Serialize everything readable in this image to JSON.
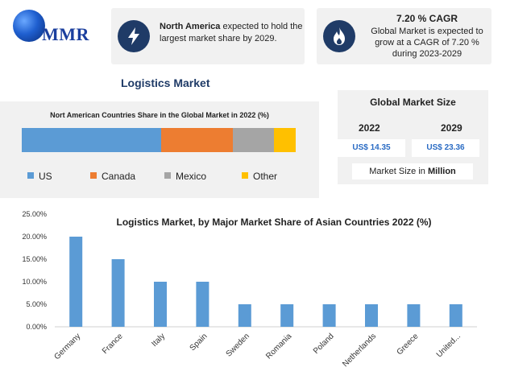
{
  "logo": {
    "text": "MMR"
  },
  "info_left": {
    "bold": "North America",
    "rest": " expected to hold the largest market share by 2029.",
    "icon": "lightning-icon"
  },
  "info_right": {
    "title": "7.20 % CAGR",
    "text": "Global Market is expected to grow at a CAGR of 7.20 % during 2023-2029",
    "icon": "flame-icon"
  },
  "page_title": "Logistics Market",
  "market_size": {
    "title": "Global Market Size",
    "year_a": "2022",
    "year_b": "2029",
    "value_a": "US$ 14.35",
    "value_b": "US$ 23.36",
    "unit_prefix": "Market Size in ",
    "unit_bold": "Million"
  },
  "chart_data": [
    {
      "type": "bar",
      "orientation": "horizontal-stacked",
      "title": "Nort American Countries Share in the Global Market in 2022 (%)",
      "series": [
        {
          "name": "US",
          "value": 51,
          "color": "#5b9bd5"
        },
        {
          "name": "Canada",
          "value": 26,
          "color": "#ed7d31"
        },
        {
          "name": "Mexico",
          "value": 15,
          "color": "#a5a5a5"
        },
        {
          "name": "Other",
          "value": 8,
          "color": "#ffc000"
        }
      ],
      "legend": "bottom"
    },
    {
      "type": "bar",
      "title": "Logistics Market, by Major Market Share of Asian Countries 2022 (%)",
      "categories": [
        "Germany",
        "France",
        "Italy",
        "Spain",
        "Sweden",
        "Romania",
        "Poland",
        "Netherlands",
        "Greece",
        "United..."
      ],
      "values": [
        20,
        15,
        10,
        10,
        5,
        5,
        5,
        5,
        5,
        5
      ],
      "ylim": [
        0,
        25
      ],
      "yticks": [
        "0.00%",
        "5.00%",
        "10.00%",
        "15.00%",
        "20.00%",
        "25.00%"
      ],
      "xlabel": "",
      "ylabel": "",
      "color": "#5b9bd5",
      "grid": false
    }
  ]
}
